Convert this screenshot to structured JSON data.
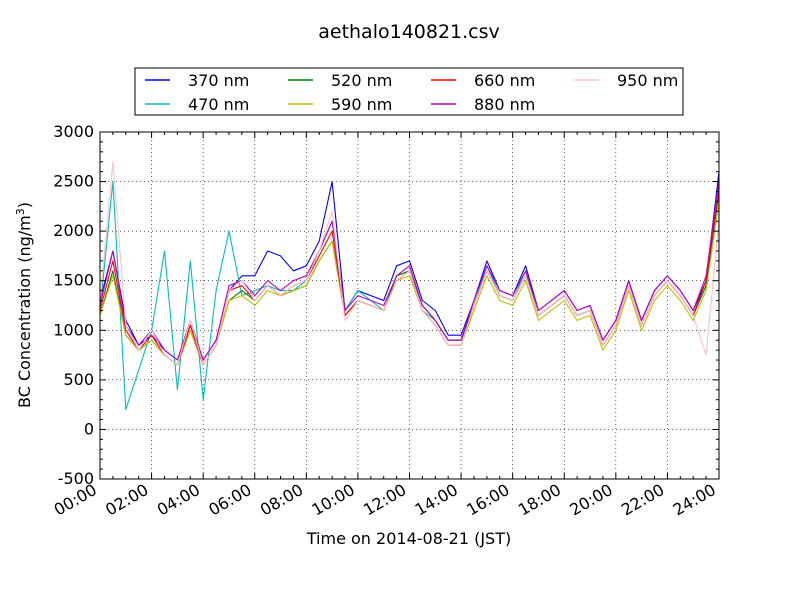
{
  "chart_data": {
    "type": "line",
    "title": "aethalo140821.csv",
    "xlabel": "Time on 2014-08-21 (JST)",
    "ylabel_main": "BC Concentration (ng/m",
    "ylabel_sup": "3",
    "ylabel_close": ")",
    "xlim": [
      "00:00",
      "24:00"
    ],
    "ylim": [
      -500,
      3000
    ],
    "xticks": [
      "00:00",
      "02:00",
      "04:00",
      "06:00",
      "08:00",
      "10:00",
      "12:00",
      "14:00",
      "16:00",
      "18:00",
      "20:00",
      "22:00",
      "24:00"
    ],
    "yticks": [
      -500,
      0,
      500,
      1000,
      1500,
      2000,
      2500,
      3000
    ],
    "grid": true,
    "legend_position": "top-center",
    "x": [
      "00:00",
      "00:30",
      "01:00",
      "01:30",
      "02:00",
      "02:30",
      "03:00",
      "03:30",
      "04:00",
      "04:30",
      "05:00",
      "05:30",
      "06:00",
      "06:30",
      "07:00",
      "07:30",
      "08:00",
      "08:30",
      "09:00",
      "09:30",
      "10:00",
      "10:30",
      "11:00",
      "11:30",
      "12:00",
      "12:30",
      "13:00",
      "13:30",
      "14:00",
      "14:30",
      "15:00",
      "15:30",
      "16:00",
      "16:30",
      "17:00",
      "17:30",
      "18:00",
      "18:30",
      "19:00",
      "19:30",
      "20:00",
      "20:30",
      "21:00",
      "21:30",
      "22:00",
      "22:30",
      "23:00",
      "23:30",
      "24:00"
    ],
    "series": [
      {
        "name": "370 nm",
        "color": "#0000ff",
        "values": [
          1300,
          1800,
          1100,
          850,
          950,
          800,
          700,
          1050,
          700,
          900,
          1400,
          1550,
          1550,
          1800,
          1750,
          1600,
          1650,
          1900,
          2500,
          1200,
          1400,
          1350,
          1300,
          1650,
          1700,
          1300,
          1200,
          950,
          950,
          1300,
          1700,
          1400,
          1350,
          1650,
          1200,
          1300,
          1400,
          1200,
          1250,
          900,
          1100,
          1500,
          1100,
          1400,
          1550,
          1400,
          1200,
          1500,
          2600
        ]
      },
      {
        "name": "470 nm",
        "color": "#00bfbf",
        "values": [
          1200,
          2500,
          200,
          600,
          1000,
          1800,
          400,
          1700,
          300,
          1400,
          2000,
          1350,
          1400,
          1450,
          1400,
          1400,
          1500,
          1800,
          2100,
          1200,
          1400,
          1300,
          1200,
          1500,
          1600,
          1200,
          1100,
          900,
          900,
          1250,
          1650,
          1350,
          1300,
          1600,
          1150,
          1250,
          1350,
          1150,
          1200,
          850,
          1050,
          1450,
          1050,
          1350,
          1500,
          1350,
          1150,
          1450,
          2500
        ]
      },
      {
        "name": "520 nm",
        "color": "#008000",
        "values": [
          1150,
          1600,
          950,
          800,
          900,
          750,
          650,
          1000,
          650,
          850,
          1300,
          1400,
          1300,
          1450,
          1350,
          1400,
          1450,
          1700,
          1900,
          1150,
          1300,
          1250,
          1200,
          1550,
          1600,
          1250,
          1100,
          900,
          900,
          1250,
          1600,
          1350,
          1300,
          1550,
          1150,
          1250,
          1350,
          1150,
          1200,
          850,
          1050,
          1450,
          1050,
          1350,
          1500,
          1350,
          1150,
          1450,
          2400
        ]
      },
      {
        "name": "590 nm",
        "color": "#bfbf00",
        "values": [
          1150,
          1550,
          950,
          800,
          900,
          750,
          650,
          1000,
          650,
          850,
          1300,
          1350,
          1250,
          1400,
          1350,
          1400,
          1450,
          1700,
          1900,
          1150,
          1300,
          1250,
          1200,
          1500,
          1550,
          1200,
          1050,
          850,
          850,
          1200,
          1550,
          1300,
          1250,
          1500,
          1100,
          1200,
          1300,
          1100,
          1150,
          800,
          1000,
          1400,
          1000,
          1300,
          1450,
          1300,
          1100,
          1400,
          2300
        ]
      },
      {
        "name": "660 nm",
        "color": "#ff0000",
        "values": [
          1200,
          1700,
          1000,
          800,
          950,
          750,
          650,
          1050,
          650,
          850,
          1400,
          1450,
          1300,
          1450,
          1350,
          1450,
          1500,
          1750,
          2000,
          1150,
          1300,
          1250,
          1200,
          1500,
          1600,
          1200,
          1050,
          850,
          850,
          1250,
          1600,
          1350,
          1300,
          1550,
          1150,
          1250,
          1350,
          1150,
          1200,
          850,
          1050,
          1450,
          1050,
          1350,
          1500,
          1350,
          1150,
          1500,
          2400
        ]
      },
      {
        "name": "880 nm",
        "color": "#bf00bf",
        "values": [
          1250,
          1800,
          1050,
          850,
          1000,
          800,
          700,
          1100,
          700,
          900,
          1450,
          1500,
          1350,
          1500,
          1400,
          1500,
          1550,
          1800,
          2100,
          1200,
          1350,
          1300,
          1250,
          1550,
          1650,
          1250,
          1100,
          900,
          900,
          1300,
          1650,
          1400,
          1350,
          1600,
          1200,
          1300,
          1400,
          1200,
          1250,
          900,
          1100,
          1500,
          1100,
          1400,
          1550,
          1400,
          1200,
          1550,
          2500
        ]
      },
      {
        "name": "950 nm",
        "color": "#ffc0cb",
        "values": [
          1300,
          2700,
          1050,
          800,
          1000,
          750,
          650,
          1100,
          650,
          850,
          1400,
          1500,
          1300,
          1450,
          1350,
          1450,
          1500,
          1800,
          2200,
          1100,
          1300,
          1250,
          1200,
          1500,
          1600,
          1200,
          1050,
          850,
          850,
          1250,
          1600,
          1350,
          1300,
          1550,
          1150,
          1250,
          1350,
          1150,
          1200,
          850,
          1050,
          1450,
          1050,
          1350,
          1500,
          1350,
          1150,
          750,
          2100
        ]
      }
    ]
  }
}
